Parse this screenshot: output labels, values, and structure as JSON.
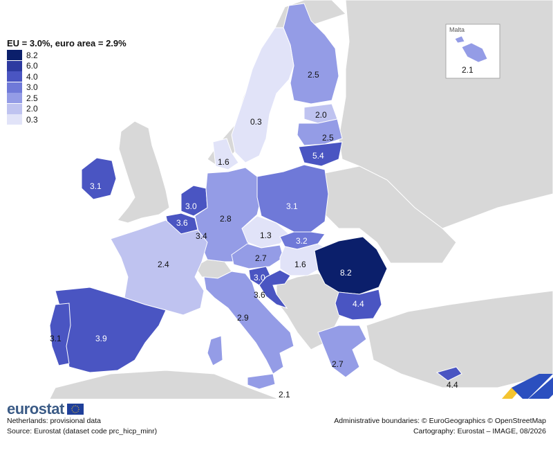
{
  "legend": {
    "title": "EU = 3.0%, euro area = 2.9%",
    "classes": [
      {
        "label": "8.2",
        "color": "#0b1f6b"
      },
      {
        "label": "6.0",
        "color": "#2d3aa0"
      },
      {
        "label": "4.0",
        "color": "#4a55c2"
      },
      {
        "label": "3.0",
        "color": "#6f79d8"
      },
      {
        "label": "2.5",
        "color": "#949ce6"
      },
      {
        "label": "2.0",
        "color": "#bfc3f0"
      },
      {
        "label": "0.3",
        "color": "#e1e3f8"
      }
    ]
  },
  "map_values": {
    "finland": "2.5",
    "sweden": "0.3",
    "estonia": "2.0",
    "latvia": "2.5",
    "lithuania": "5.4",
    "denmark": "1.6",
    "ireland": "3.1",
    "netherlands": "3.0",
    "belgium": "3.6",
    "luxembourg": "3.4",
    "germany": "2.8",
    "poland": "3.1",
    "czechia": "1.3",
    "slovakia": "3.2",
    "austria": "2.7",
    "hungary": "1.6",
    "romania": "8.2",
    "slovenia": "3.0",
    "croatia": "3.6",
    "bulgaria": "4.4",
    "france": "2.4",
    "italy": "2.9",
    "spain": "3.9",
    "portugal": "3.1",
    "greece": "2.7",
    "cyprus": "4.4",
    "malta": "2.1",
    "malta_inset_title": "Malta",
    "malta_inset_value": "2.1"
  },
  "colors": {
    "sea": "#ffffff",
    "non_eu_land": "#d8d8d8",
    "border": "#ffffff",
    "logo_blue": "#3b5b86",
    "logo_accent_blue": "#2b4fbf",
    "logo_accent_yellow": "#f4c430"
  },
  "footer": {
    "logo_text": "eurostat",
    "note_left_1": "Netherlands: provisional data",
    "note_left_2": "Source: Eurostat (dataset code prc_hicp_minr)",
    "note_right_1": "Administrative boundaries: © EuroGeographics © OpenStreetMap",
    "note_right_2": "Cartography: Eurostat – IMAGE, 08/2026"
  }
}
